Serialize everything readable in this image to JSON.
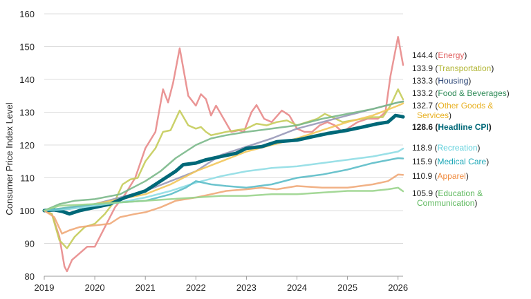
{
  "chart_data": {
    "type": "line",
    "title": "",
    "ylabel": "Consumer Price Index Level",
    "xlabel": "",
    "ylim": [
      80,
      160
    ],
    "xlim": [
      2019,
      2026.1
    ],
    "yticks": [
      80,
      90,
      100,
      110,
      120,
      130,
      140,
      150,
      160
    ],
    "xticks": [
      2019,
      2020,
      2021,
      2022,
      2023,
      2024,
      2025,
      2026
    ],
    "grid": "horizontal",
    "series": [
      {
        "name": "Energy",
        "color": "#e88a8a",
        "value_label": "144.4",
        "points": [
          [
            2019,
            100
          ],
          [
            2019.15,
            99
          ],
          [
            2019.3,
            92
          ],
          [
            2019.4,
            83
          ],
          [
            2019.45,
            81.5
          ],
          [
            2019.55,
            85
          ],
          [
            2019.7,
            87
          ],
          [
            2019.85,
            89
          ],
          [
            2020,
            89
          ],
          [
            2020.2,
            95
          ],
          [
            2020.4,
            101
          ],
          [
            2020.6,
            105
          ],
          [
            2020.8,
            110
          ],
          [
            2021,
            119
          ],
          [
            2021.2,
            124
          ],
          [
            2021.35,
            137
          ],
          [
            2021.45,
            133
          ],
          [
            2021.55,
            139
          ],
          [
            2021.68,
            149.5
          ],
          [
            2021.85,
            135
          ],
          [
            2022,
            132
          ],
          [
            2022.1,
            135.5
          ],
          [
            2022.2,
            134
          ],
          [
            2022.3,
            129
          ],
          [
            2022.4,
            132
          ],
          [
            2022.55,
            128
          ],
          [
            2022.7,
            124
          ],
          [
            2022.85,
            124.5
          ],
          [
            2022.95,
            124
          ],
          [
            2023.1,
            130
          ],
          [
            2023.2,
            132.2
          ],
          [
            2023.35,
            128
          ],
          [
            2023.5,
            127
          ],
          [
            2023.7,
            130.5
          ],
          [
            2023.85,
            129
          ],
          [
            2024,
            125
          ],
          [
            2024.15,
            124
          ],
          [
            2024.3,
            124
          ],
          [
            2024.45,
            126
          ],
          [
            2024.6,
            127
          ],
          [
            2024.75,
            126
          ],
          [
            2024.9,
            124
          ],
          [
            2025,
            125
          ],
          [
            2025.2,
            127
          ],
          [
            2025.4,
            128
          ],
          [
            2025.6,
            128
          ],
          [
            2025.75,
            130
          ],
          [
            2025.85,
            141
          ],
          [
            2026,
            153
          ],
          [
            2026.1,
            144.4
          ]
        ]
      },
      {
        "name": "Transportation",
        "color": "#c5cc5a",
        "value_label": "133.9",
        "points": [
          [
            2019,
            100
          ],
          [
            2019.15,
            99
          ],
          [
            2019.3,
            91
          ],
          [
            2019.45,
            88.5
          ],
          [
            2019.6,
            92
          ],
          [
            2019.8,
            95
          ],
          [
            2020,
            96
          ],
          [
            2020.2,
            99
          ],
          [
            2020.4,
            103
          ],
          [
            2020.55,
            108
          ],
          [
            2020.7,
            109.5
          ],
          [
            2020.85,
            110
          ],
          [
            2021,
            115
          ],
          [
            2021.2,
            119
          ],
          [
            2021.35,
            124
          ],
          [
            2021.5,
            124.5
          ],
          [
            2021.68,
            130.5
          ],
          [
            2021.85,
            126
          ],
          [
            2022,
            125
          ],
          [
            2022.1,
            125.5
          ],
          [
            2022.2,
            124
          ],
          [
            2022.3,
            123
          ],
          [
            2022.45,
            123.5
          ],
          [
            2022.6,
            124
          ],
          [
            2022.8,
            124.5
          ],
          [
            2023,
            125
          ],
          [
            2023.2,
            126.5
          ],
          [
            2023.4,
            126
          ],
          [
            2023.6,
            127
          ],
          [
            2023.8,
            127.5
          ],
          [
            2024,
            126
          ],
          [
            2024.2,
            127
          ],
          [
            2024.4,
            128
          ],
          [
            2024.55,
            129.5
          ],
          [
            2024.7,
            128.5
          ],
          [
            2024.9,
            127
          ],
          [
            2025.1,
            127.5
          ],
          [
            2025.3,
            128
          ],
          [
            2025.5,
            128.5
          ],
          [
            2025.7,
            128.5
          ],
          [
            2025.85,
            132
          ],
          [
            2026,
            137
          ],
          [
            2026.1,
            133.9
          ]
        ]
      },
      {
        "name": "Housing",
        "color": "#9898b8",
        "value_label": "133.3",
        "points": [
          [
            2019,
            100
          ],
          [
            2019.5,
            100.5
          ],
          [
            2020,
            102
          ],
          [
            2020.5,
            104
          ],
          [
            2021,
            106
          ],
          [
            2021.5,
            109
          ],
          [
            2022,
            112
          ],
          [
            2022.5,
            117
          ],
          [
            2023,
            119.5
          ],
          [
            2023.5,
            122
          ],
          [
            2024,
            125
          ],
          [
            2024.5,
            127
          ],
          [
            2025,
            129
          ],
          [
            2025.5,
            131
          ],
          [
            2026,
            133
          ],
          [
            2026.1,
            133.3
          ]
        ]
      },
      {
        "name": "Food & Beverages",
        "color": "#7ab88a",
        "value_label": "133.2",
        "points": [
          [
            2019,
            100
          ],
          [
            2019.3,
            102
          ],
          [
            2019.6,
            103
          ],
          [
            2020,
            103.5
          ],
          [
            2020.5,
            105
          ],
          [
            2021,
            109
          ],
          [
            2021.3,
            112
          ],
          [
            2021.6,
            116
          ],
          [
            2022,
            120
          ],
          [
            2022.3,
            122
          ],
          [
            2022.6,
            123
          ],
          [
            2023,
            124
          ],
          [
            2023.5,
            125
          ],
          [
            2024,
            126
          ],
          [
            2024.5,
            128
          ],
          [
            2025,
            129.5
          ],
          [
            2025.5,
            131
          ],
          [
            2026,
            133
          ],
          [
            2026.1,
            133.2
          ]
        ]
      },
      {
        "name": "Other Goods & Services",
        "color": "#f2c65a",
        "value_label": "132.7",
        "points": [
          [
            2019,
            100
          ],
          [
            2019.5,
            101
          ],
          [
            2020,
            102
          ],
          [
            2020.5,
            103.5
          ],
          [
            2021,
            105
          ],
          [
            2021.5,
            108
          ],
          [
            2022,
            112
          ],
          [
            2022.5,
            115
          ],
          [
            2023,
            118
          ],
          [
            2023.5,
            120
          ],
          [
            2024,
            122
          ],
          [
            2024.5,
            124.5
          ],
          [
            2025,
            127
          ],
          [
            2025.5,
            129
          ],
          [
            2026,
            132
          ],
          [
            2026.1,
            132.7
          ]
        ]
      },
      {
        "name": "Headline CPI",
        "color": "#006878",
        "value_label": "128.6",
        "bold": true,
        "points": [
          [
            2019,
            100
          ],
          [
            2019.2,
            100.2
          ],
          [
            2019.35,
            99.8
          ],
          [
            2019.5,
            99
          ],
          [
            2019.7,
            100
          ],
          [
            2020,
            101
          ],
          [
            2020.3,
            102
          ],
          [
            2020.6,
            104
          ],
          [
            2021,
            106
          ],
          [
            2021.3,
            109
          ],
          [
            2021.6,
            112
          ],
          [
            2021.75,
            114
          ],
          [
            2022,
            114.5
          ],
          [
            2022.2,
            115.5
          ],
          [
            2022.5,
            116.5
          ],
          [
            2022.8,
            117.5
          ],
          [
            2023,
            119
          ],
          [
            2023.3,
            119.5
          ],
          [
            2023.6,
            121
          ],
          [
            2024,
            121.5
          ],
          [
            2024.3,
            122.5
          ],
          [
            2024.6,
            123.5
          ],
          [
            2025,
            124.5
          ],
          [
            2025.3,
            125.5
          ],
          [
            2025.6,
            126.5
          ],
          [
            2025.8,
            127
          ],
          [
            2025.95,
            129
          ],
          [
            2026.1,
            128.6
          ]
        ]
      },
      {
        "name": "Recreation",
        "color": "#8fdde4",
        "value_label": "118.9",
        "points": [
          [
            2019,
            100
          ],
          [
            2019.5,
            100.5
          ],
          [
            2020,
            101.5
          ],
          [
            2020.5,
            102.5
          ],
          [
            2021,
            104
          ],
          [
            2021.5,
            106
          ],
          [
            2022,
            108.5
          ],
          [
            2022.5,
            110.5
          ],
          [
            2023,
            112
          ],
          [
            2023.5,
            113
          ],
          [
            2024,
            113.5
          ],
          [
            2024.5,
            114.5
          ],
          [
            2025,
            115.5
          ],
          [
            2025.5,
            116.5
          ],
          [
            2026,
            118
          ],
          [
            2026.1,
            118.9
          ]
        ]
      },
      {
        "name": "Medical Care",
        "color": "#5bbcc8",
        "value_label": "115.9",
        "points": [
          [
            2019,
            100
          ],
          [
            2019.5,
            101
          ],
          [
            2020,
            102
          ],
          [
            2020.5,
            102.5
          ],
          [
            2021,
            103
          ],
          [
            2021.5,
            105
          ],
          [
            2021.8,
            107
          ],
          [
            2022,
            109
          ],
          [
            2022.3,
            108
          ],
          [
            2022.6,
            107.5
          ],
          [
            2023,
            107
          ],
          [
            2023.5,
            108
          ],
          [
            2024,
            110
          ],
          [
            2024.5,
            111
          ],
          [
            2025,
            112.5
          ],
          [
            2025.5,
            114.5
          ],
          [
            2026,
            116
          ],
          [
            2026.1,
            115.9
          ]
        ]
      },
      {
        "name": "Apparel",
        "color": "#f0a878",
        "value_label": "110.9",
        "points": [
          [
            2019,
            100
          ],
          [
            2019.2,
            98
          ],
          [
            2019.35,
            93
          ],
          [
            2019.5,
            94
          ],
          [
            2019.7,
            95
          ],
          [
            2020,
            95.5
          ],
          [
            2020.3,
            96
          ],
          [
            2020.5,
            98
          ],
          [
            2020.8,
            99
          ],
          [
            2021,
            99.5
          ],
          [
            2021.3,
            101
          ],
          [
            2021.6,
            103
          ],
          [
            2022,
            104
          ],
          [
            2022.3,
            105
          ],
          [
            2022.6,
            106
          ],
          [
            2023,
            106.5
          ],
          [
            2023.3,
            107
          ],
          [
            2023.6,
            106.5
          ],
          [
            2024,
            107.5
          ],
          [
            2024.5,
            107
          ],
          [
            2025,
            107
          ],
          [
            2025.5,
            108
          ],
          [
            2025.8,
            109
          ],
          [
            2026,
            111
          ],
          [
            2026.1,
            110.9
          ]
        ]
      },
      {
        "name": "Education & Communication",
        "color": "#9ad48c",
        "value_label": "105.9",
        "points": [
          [
            2019,
            100
          ],
          [
            2019.3,
            101.5
          ],
          [
            2020,
            102
          ],
          [
            2020.5,
            102.5
          ],
          [
            2021,
            103
          ],
          [
            2021.5,
            103.5
          ],
          [
            2022,
            104
          ],
          [
            2022.5,
            104.5
          ],
          [
            2023,
            104.5
          ],
          [
            2023.5,
            105
          ],
          [
            2024,
            105
          ],
          [
            2024.5,
            105.5
          ],
          [
            2025,
            106
          ],
          [
            2025.5,
            106
          ],
          [
            2025.8,
            106.5
          ],
          [
            2026,
            107
          ],
          [
            2026.1,
            105.9
          ]
        ]
      }
    ],
    "legend_labels": [
      {
        "value": "144.4",
        "name": "Energy",
        "name_color": "#e06060",
        "bold": false
      },
      {
        "value": "133.9",
        "name": "Transportation",
        "name_color": "#b0b430",
        "bold": false
      },
      {
        "value": "133.3",
        "name": "Housing",
        "name_color": "#1f3a6e",
        "bold": false
      },
      {
        "value": "133.2",
        "name": "Food & Beverages",
        "name_color": "#2e8b57",
        "bold": false
      },
      {
        "value": "132.7",
        "name": "Other Goods &",
        "name2": "Services",
        "name_color": "#e8b020",
        "bold": false
      },
      {
        "value": "128.6",
        "name": "Headline CPI",
        "name_color": "#006878",
        "bold": true
      },
      {
        "value": "118.9",
        "name": "Recreation",
        "name_color": "#5fd0dc",
        "bold": false
      },
      {
        "value": "115.9",
        "name": "Medical Care",
        "name_color": "#1aa6b6",
        "bold": false
      },
      {
        "value": "110.9",
        "name": "Apparel",
        "name_color": "#f08c40",
        "bold": false
      },
      {
        "value": "105.9",
        "name": "Education &",
        "name2": "Communication",
        "name_color": "#5cb85c",
        "bold": false
      }
    ]
  }
}
